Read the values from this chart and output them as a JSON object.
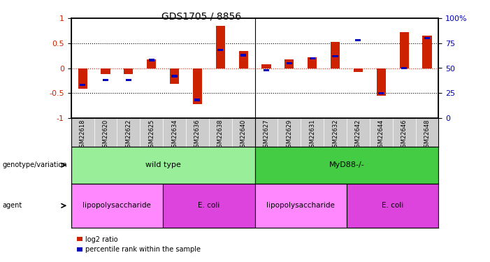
{
  "title": "GDS1705 / 8856",
  "samples": [
    "GSM22618",
    "GSM22620",
    "GSM22622",
    "GSM22625",
    "GSM22634",
    "GSM22636",
    "GSM22638",
    "GSM22640",
    "GSM22627",
    "GSM22629",
    "GSM22631",
    "GSM22632",
    "GSM22642",
    "GSM22644",
    "GSM22646",
    "GSM22648"
  ],
  "log2_ratio": [
    -0.42,
    -0.12,
    -0.12,
    0.18,
    -0.32,
    -0.72,
    0.85,
    0.35,
    0.08,
    0.18,
    0.22,
    0.52,
    -0.08,
    -0.55,
    0.72,
    0.65
  ],
  "percentile": [
    33,
    38,
    38,
    58,
    42,
    18,
    68,
    63,
    48,
    55,
    60,
    62,
    78,
    25,
    50,
    80
  ],
  "genotype_groups": [
    {
      "label": "wild type",
      "start": 0,
      "end": 8,
      "color": "#99ee99"
    },
    {
      "label": "MyD88-/-",
      "start": 8,
      "end": 16,
      "color": "#44cc44"
    }
  ],
  "agent_groups": [
    {
      "label": "lipopolysaccharide",
      "start": 0,
      "end": 4,
      "color": "#ff88ff"
    },
    {
      "label": "E. coli",
      "start": 4,
      "end": 8,
      "color": "#dd44dd"
    },
    {
      "label": "lipopolysaccharide",
      "start": 8,
      "end": 12,
      "color": "#ff88ff"
    },
    {
      "label": "E. coli",
      "start": 12,
      "end": 16,
      "color": "#dd44dd"
    }
  ],
  "bar_color": "#cc2200",
  "dot_color": "#0000bb",
  "ylim": [
    -1,
    1
  ],
  "right_ylim": [
    0,
    100
  ],
  "yticks_left": [
    -1,
    -0.5,
    0,
    0.5,
    1
  ],
  "yticks_right": [
    0,
    25,
    50,
    75,
    100
  ],
  "hline_dotted_color": "black",
  "hline_zero_color": "#cc2200",
  "background_color": "#ffffff",
  "tick_bg_color": "#cccccc"
}
